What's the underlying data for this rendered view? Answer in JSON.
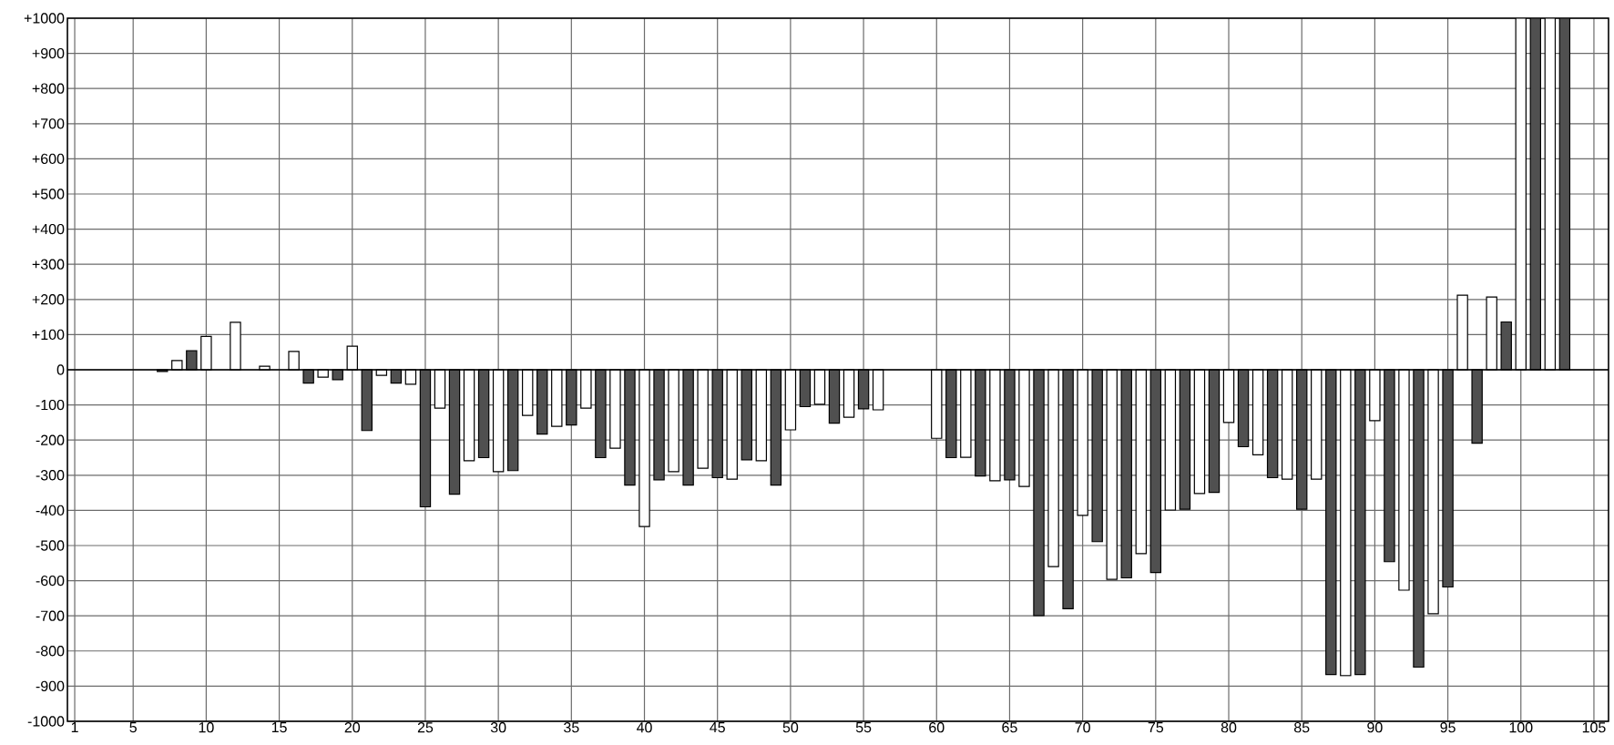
{
  "chart_data": {
    "type": "bar",
    "xlim": [
      0.5,
      106
    ],
    "xticks": [
      1,
      5,
      10,
      15,
      20,
      25,
      30,
      35,
      40,
      45,
      50,
      55,
      60,
      65,
      70,
      75,
      80,
      85,
      90,
      95,
      100,
      105
    ],
    "ylim": [
      -1000,
      1000
    ],
    "yticks": [
      -1000,
      -900,
      -800,
      -700,
      -600,
      -500,
      -400,
      -300,
      -200,
      -100,
      0,
      {
        "value": 100,
        "label": "+100"
      },
      {
        "value": 200,
        "label": "+200"
      },
      {
        "value": 300,
        "label": "+300"
      },
      {
        "value": 400,
        "label": "+400"
      },
      {
        "value": 500,
        "label": "+500"
      },
      {
        "value": 600,
        "label": "+600"
      },
      {
        "value": 700,
        "label": "+700"
      },
      {
        "value": 800,
        "label": "+800"
      },
      {
        "value": 900,
        "label": "+900"
      },
      {
        "value": 1000,
        "label": "+1000"
      }
    ],
    "grid": true,
    "ref_lines": [
      {
        "axis": "y",
        "value": 0,
        "color": "#000000"
      }
    ],
    "series": [
      {
        "color": "#ffffff",
        "x": [
          8,
          10,
          12,
          14,
          16,
          18,
          20,
          22,
          24,
          26,
          28,
          30,
          32,
          34,
          36,
          38,
          40,
          42,
          44,
          46,
          48,
          50,
          52,
          54,
          56,
          60,
          62,
          64,
          66,
          68,
          70,
          72,
          74,
          76,
          78,
          80,
          82,
          84,
          86,
          88,
          90,
          92,
          94,
          96,
          98,
          100,
          102
        ],
        "values": [
          26,
          95,
          135,
          10,
          52,
          -21,
          67,
          -16,
          -41,
          -109,
          -259,
          -290,
          -130,
          -161,
          -109,
          -223,
          -446,
          -290,
          -280,
          -311,
          -259,
          -171,
          -98,
          -135,
          -114,
          -195,
          -249,
          -316,
          -332,
          -560,
          -414,
          -596,
          -523,
          -399,
          -352,
          -150,
          -242,
          -311,
          -311,
          -870,
          -145,
          -627,
          -694,
          212,
          207,
          1000,
          1000
        ]
      },
      {
        "color": "#505050",
        "x": [
          7,
          9,
          17,
          19,
          21,
          23,
          25,
          27,
          29,
          31,
          33,
          35,
          37,
          39,
          41,
          43,
          45,
          47,
          49,
          51,
          53,
          55,
          61,
          63,
          65,
          67,
          69,
          71,
          73,
          75,
          77,
          79,
          81,
          83,
          85,
          87,
          89,
          91,
          93,
          95,
          97,
          99,
          101,
          103
        ],
        "values": [
          -5,
          54,
          -38,
          -28,
          -173,
          -38,
          -390,
          -354,
          -250,
          -287,
          -183,
          -157,
          -250,
          -328,
          -313,
          -328,
          -307,
          -256,
          -328,
          -105,
          -152,
          -111,
          -250,
          -302,
          -313,
          -699,
          -680,
          -489,
          -592,
          -577,
          -397,
          -349,
          -219,
          -307,
          -397,
          -867,
          -867,
          -546,
          -846,
          -618,
          -209,
          136,
          1000,
          1000
        ]
      }
    ]
  }
}
